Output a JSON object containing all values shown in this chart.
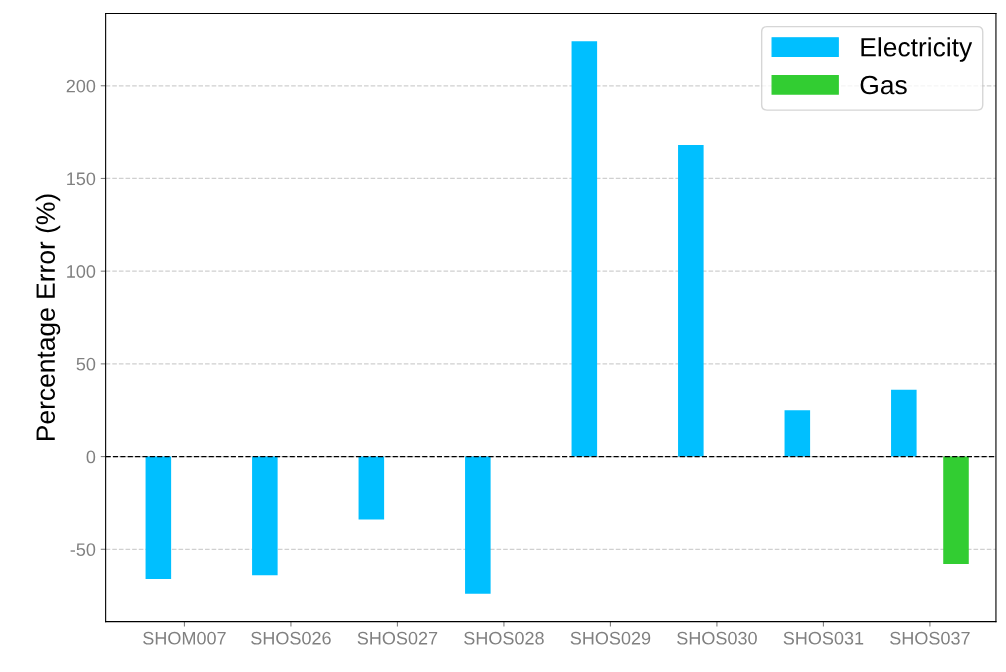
{
  "chart_data": {
    "type": "bar",
    "ylabel": "Percentage Error (%)",
    "categories": [
      "SHOM007",
      "SHOS026",
      "SHOS027",
      "SHOS028",
      "SHOS029",
      "SHOS030",
      "SHOS031",
      "SHOS037"
    ],
    "series": [
      {
        "name": "Electricity",
        "color": "#00bfff",
        "values": [
          -66,
          -64,
          -34,
          -74,
          224,
          168,
          25,
          36
        ]
      },
      {
        "name": "Gas",
        "color": "#32cd32",
        "values": [
          null,
          null,
          null,
          null,
          null,
          null,
          null,
          -58
        ]
      }
    ],
    "ylim": [
      -89,
      239
    ],
    "yticks": [
      -50,
      0,
      50,
      100,
      150,
      200
    ],
    "grid": "y",
    "legend": "top right",
    "ref_lines": [
      {
        "axis": "y",
        "value": 0,
        "color": "#000000",
        "line_style": "dashed"
      }
    ]
  }
}
